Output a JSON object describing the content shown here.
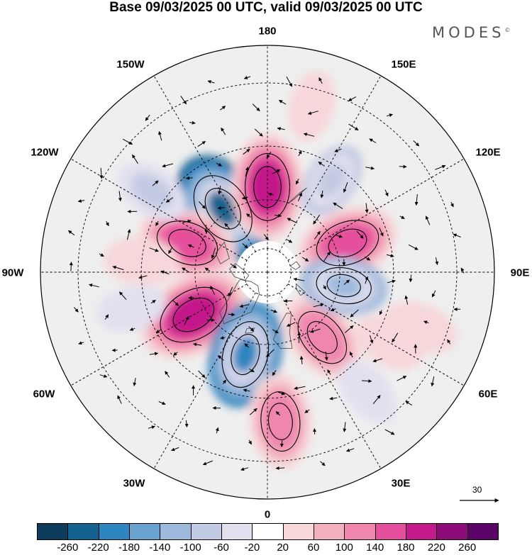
{
  "title": "Base 09/03/2025 00 UTC, valid 09/03/2025 00 UTC",
  "brand": {
    "name": "MODES",
    "mark": "©"
  },
  "longitude_labels": [
    "180",
    "150E",
    "120E",
    "90E",
    "60E",
    "30E",
    "0",
    "30W",
    "60W",
    "90W",
    "120W",
    "150W"
  ],
  "projection": "north-polar-stereographic",
  "vector_reference": {
    "label": "30"
  },
  "colorbar": {
    "ticks": [
      "-260",
      "-220",
      "-180",
      "-140",
      "-100",
      "-60",
      "-20",
      "20",
      "60",
      "100",
      "140",
      "180",
      "220",
      "260"
    ],
    "colors": [
      "#0d3d5c",
      "#13628f",
      "#2f85bf",
      "#6aa3d0",
      "#9db9dc",
      "#c3cae3",
      "#e2e0ef",
      "#ffffff",
      "#f7d7d9",
      "#f3b0bd",
      "#ef86ae",
      "#e5509c",
      "#c3198a",
      "#8c0b78",
      "#5a0467"
    ]
  },
  "anomaly_centers": [
    {
      "lon": -145,
      "lat": 58,
      "value": -230
    },
    {
      "lon": 180,
      "lat": 55,
      "value": 190
    },
    {
      "lon": -110,
      "lat": 55,
      "value": 160
    },
    {
      "lon": 110,
      "lat": 55,
      "value": 170
    },
    {
      "lon": -60,
      "lat": 55,
      "value": 220
    },
    {
      "lon": -15,
      "lat": 55,
      "value": -190
    },
    {
      "lon": 40,
      "lat": 55,
      "value": 140
    },
    {
      "lon": 80,
      "lat": 58,
      "value": -110
    },
    {
      "lon": 5,
      "lat": 32,
      "value": 140
    },
    {
      "lon": 70,
      "lat": 28,
      "value": 60
    },
    {
      "lon": 145,
      "lat": 45,
      "value": -70
    },
    {
      "lon": -95,
      "lat": 40,
      "value": 60
    },
    {
      "lon": 165,
      "lat": 25,
      "value": 40
    },
    {
      "lon": -125,
      "lat": 35,
      "value": -60
    },
    {
      "lon": 40,
      "lat": 30,
      "value": -40
    },
    {
      "lon": 60,
      "lat": 35,
      "value": 50
    },
    {
      "lon": -75,
      "lat": 35,
      "value": -40
    }
  ]
}
